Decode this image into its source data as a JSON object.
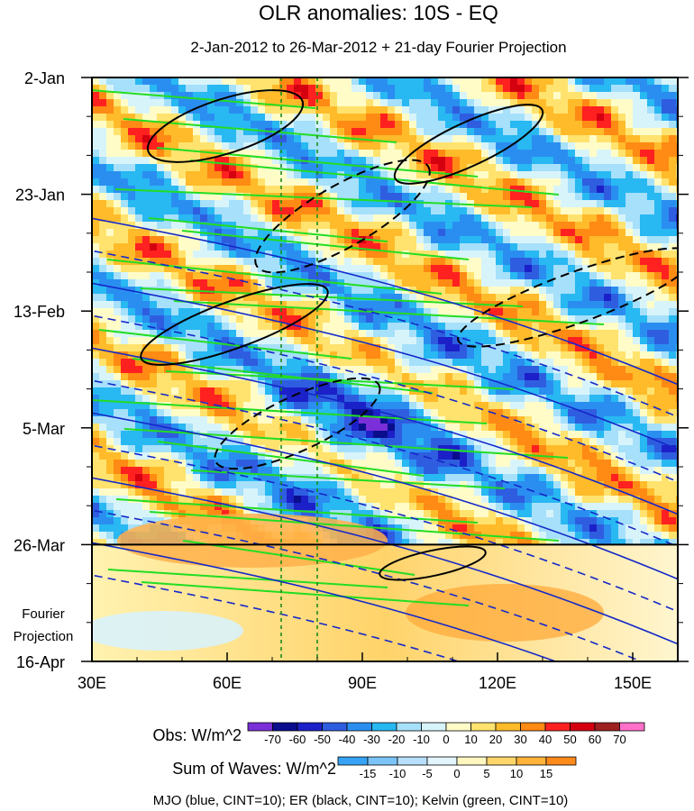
{
  "chart_data": {
    "type": "heatmap",
    "title": "OLR anomalies: 10S - EQ",
    "subtitle": "2-Jan-2012 to 26-Mar-2012 + 21-day Fourier Projection",
    "x_axis": {
      "range": [
        30,
        160
      ],
      "ticks": [
        30,
        60,
        90,
        120,
        150
      ],
      "tick_labels": [
        "30E",
        "60E",
        "90E",
        "120E",
        "150E"
      ]
    },
    "y_axis": {
      "reversed": true,
      "range_days": [
        0,
        105
      ],
      "ticks_days": [
        0,
        21,
        42,
        63,
        84,
        105
      ],
      "tick_labels": [
        "2-Jan",
        "23-Jan",
        "13-Feb",
        "5-Mar",
        "26-Mar",
        "16-Apr"
      ],
      "projection_label_lines": [
        "Fourier",
        "Projection"
      ],
      "observed_end_label": "26-Mar"
    },
    "reference_lines_lon": [
      72,
      80
    ],
    "obs_colorbar": {
      "label": "Obs: W/m^2",
      "levels": [
        -70,
        -60,
        -50,
        -40,
        -30,
        -20,
        -10,
        0,
        10,
        20,
        30,
        40,
        50,
        60,
        70
      ],
      "colors": [
        "#7a2fd8",
        "#0a0e8c",
        "#1c20c8",
        "#2f5de0",
        "#2a8ef0",
        "#28b8f2",
        "#a6e0fa",
        "#d8f4fb",
        "#fffcc8",
        "#ffe36e",
        "#ffbb2a",
        "#ff8a14",
        "#ff2020",
        "#d40010",
        "#9e2020",
        "#ff70c8"
      ]
    },
    "waves_colorbar": {
      "label": "Sum of Waves: W/m^2",
      "levels": [
        -15,
        -10,
        -5,
        0,
        5,
        10,
        15
      ],
      "colors": [
        "#36a3f4",
        "#7cc4f8",
        "#b8e0fb",
        "#e2f4fc",
        "#fff6c0",
        "#ffd66a",
        "#ffb33a",
        "#ff8a1c"
      ]
    },
    "contours_legend": "MJO (blue, CINT=10); ER (black, CINT=10); Kelvin (green, CINT=10)",
    "series": [
      {
        "name": "MJO",
        "color": "#1428c8"
      },
      {
        "name": "ER",
        "color": "#000000"
      },
      {
        "name": "Kelvin",
        "color": "#22dd22"
      }
    ]
  }
}
